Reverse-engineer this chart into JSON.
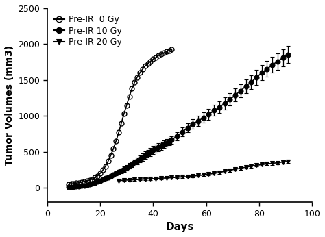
{
  "xlabel": "Days",
  "ylabel": "Tumor Volumes (mm3)",
  "xlim": [
    0,
    100
  ],
  "ylim": [
    -200,
    2500
  ],
  "yticks": [
    0,
    500,
    1000,
    1500,
    2000,
    2500
  ],
  "xticks": [
    0,
    20,
    40,
    60,
    80,
    100
  ],
  "series": [
    {
      "label": "Pre-IR  0 Gy",
      "marker": "o",
      "fillstyle": "none",
      "color": "black",
      "linewidth": 1.2,
      "markersize": 5,
      "x": [
        8,
        9,
        10,
        11,
        12,
        13,
        14,
        15,
        16,
        17,
        18,
        19,
        20,
        21,
        22,
        23,
        24,
        25,
        26,
        27,
        28,
        29,
        30,
        31,
        32,
        33,
        34,
        35,
        36,
        37,
        38,
        39,
        40,
        41,
        42,
        43,
        44,
        45,
        46,
        47
      ],
      "y": [
        50,
        55,
        60,
        65,
        70,
        78,
        88,
        95,
        105,
        120,
        140,
        165,
        200,
        245,
        300,
        370,
        450,
        545,
        650,
        770,
        900,
        1030,
        1150,
        1270,
        1380,
        1470,
        1540,
        1600,
        1650,
        1695,
        1730,
        1760,
        1790,
        1810,
        1840,
        1860,
        1875,
        1895,
        1910,
        1930
      ],
      "yerr": null
    },
    {
      "label": "Pre-IR 10 Gy",
      "marker": "o",
      "fillstyle": "full",
      "color": "black",
      "linewidth": 1.2,
      "markersize": 5,
      "x": [
        8,
        9,
        10,
        11,
        12,
        13,
        14,
        15,
        16,
        17,
        18,
        19,
        20,
        21,
        22,
        23,
        24,
        25,
        26,
        27,
        28,
        29,
        30,
        31,
        32,
        33,
        34,
        35,
        36,
        37,
        38,
        39,
        40,
        41,
        42,
        43,
        44,
        45,
        46,
        47,
        49,
        51,
        53,
        55,
        57,
        59,
        61,
        63,
        65,
        67,
        69,
        71,
        73,
        75,
        77,
        79,
        81,
        83,
        85,
        87,
        89,
        91
      ],
      "y": [
        10,
        12,
        14,
        16,
        20,
        25,
        30,
        38,
        48,
        58,
        70,
        85,
        100,
        115,
        130,
        148,
        165,
        183,
        200,
        218,
        238,
        258,
        280,
        302,
        325,
        350,
        375,
        400,
        425,
        450,
        475,
        500,
        525,
        545,
        565,
        585,
        605,
        625,
        645,
        665,
        720,
        775,
        835,
        885,
        930,
        975,
        1020,
        1075,
        1120,
        1175,
        1230,
        1290,
        1350,
        1415,
        1470,
        1535,
        1600,
        1655,
        1710,
        1760,
        1810,
        1855
      ],
      "yerr": [
        5,
        5,
        6,
        6,
        7,
        7,
        8,
        8,
        9,
        10,
        12,
        14,
        16,
        18,
        20,
        22,
        24,
        26,
        28,
        30,
        32,
        34,
        36,
        38,
        40,
        42,
        45,
        47,
        49,
        52,
        54,
        57,
        59,
        58,
        57,
        55,
        53,
        51,
        52,
        54,
        58,
        62,
        66,
        68,
        70,
        72,
        74,
        77,
        80,
        83,
        86,
        89,
        92,
        95,
        98,
        102,
        105,
        108,
        111,
        114,
        117,
        120
      ]
    },
    {
      "label": "Pre-IR 20 Gy",
      "marker": "v",
      "fillstyle": "full",
      "color": "black",
      "linewidth": 1.2,
      "markersize": 5,
      "x": [
        27,
        29,
        31,
        33,
        35,
        37,
        39,
        41,
        43,
        45,
        47,
        49,
        51,
        53,
        55,
        57,
        59,
        61,
        63,
        65,
        67,
        69,
        71,
        73,
        75,
        77,
        79,
        81,
        83,
        85,
        87,
        89,
        91
      ],
      "y": [
        100,
        105,
        108,
        112,
        116,
        120,
        124,
        128,
        132,
        136,
        140,
        145,
        150,
        155,
        162,
        170,
        178,
        188,
        200,
        213,
        228,
        243,
        258,
        272,
        286,
        300,
        312,
        322,
        332,
        340,
        348,
        358,
        368
      ],
      "yerr": [
        12,
        12,
        12,
        13,
        13,
        13,
        14,
        14,
        14,
        14,
        15,
        15,
        15,
        15,
        15,
        16,
        16,
        16,
        17,
        17,
        18,
        18,
        19,
        19,
        20,
        20,
        20,
        20,
        20,
        20,
        20,
        20,
        20
      ]
    }
  ]
}
